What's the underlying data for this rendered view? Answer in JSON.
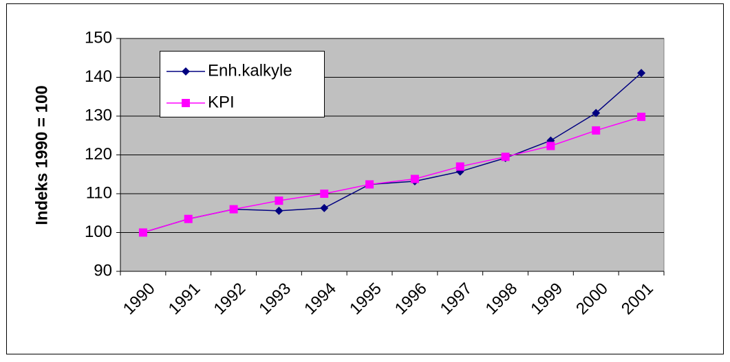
{
  "chart_data": {
    "type": "line",
    "y_label": "Indeks 1990 = 100",
    "categories": [
      "1990",
      "1991",
      "1992",
      "1993",
      "1994",
      "1995",
      "1996",
      "1997",
      "1998",
      "1999",
      "2000",
      "2001"
    ],
    "series": [
      {
        "name": "Enh.kalkyle",
        "color": "#000080",
        "marker": "diamond",
        "values": [
          100,
          103.5,
          106,
          105.6,
          106.3,
          112.4,
          113.2,
          115.7,
          119.2,
          123.7,
          130.8,
          141.1
        ]
      },
      {
        "name": "KPI",
        "color": "#ff00ff",
        "marker": "square",
        "values": [
          100,
          103.5,
          106,
          108.2,
          110,
          112.4,
          113.8,
          117,
          119.5,
          122.3,
          126.3,
          129.8
        ]
      }
    ],
    "ylim": [
      90,
      150
    ],
    "yticks": [
      90,
      100,
      110,
      120,
      130,
      140,
      150
    ],
    "grid": true,
    "legend": "top-left"
  }
}
